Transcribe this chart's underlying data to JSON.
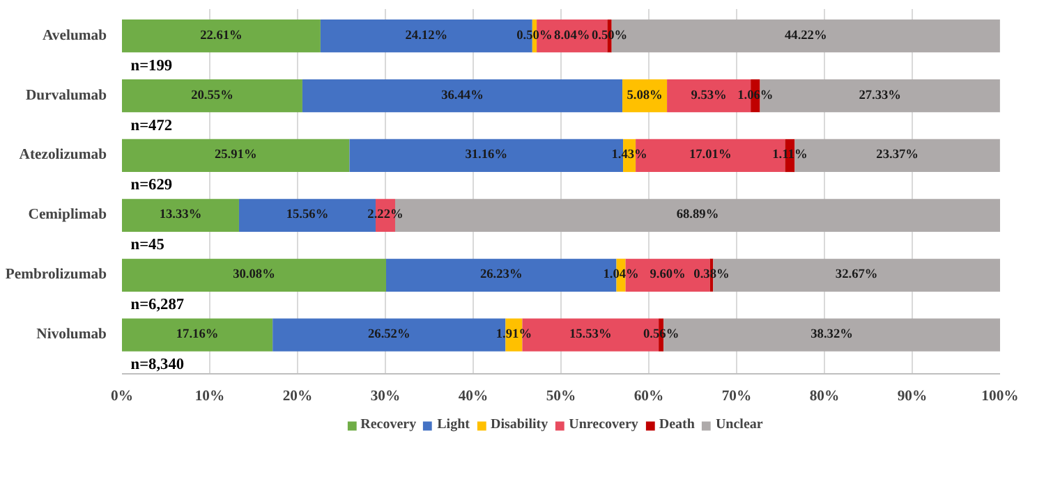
{
  "chart_data": {
    "type": "bar",
    "orientation": "horizontal",
    "stacked": true,
    "categories": [
      "Avelumab",
      "Durvalumab",
      "Atezolizumab",
      "Cemiplimab",
      "Pembrolizumab",
      "Nivolumab"
    ],
    "series": [
      {
        "name": "Recovery",
        "color": "#70ad47",
        "values": [
          22.61,
          20.55,
          25.91,
          13.33,
          30.08,
          17.16
        ],
        "value_labels": [
          "22.61%",
          "20.55%",
          "25.91%",
          "13.33%",
          "30.08%",
          "17.16%"
        ]
      },
      {
        "name": "Light",
        "color": "#4472c4",
        "values": [
          24.12,
          36.44,
          31.16,
          15.56,
          26.23,
          26.52
        ],
        "value_labels": [
          "24.12%",
          "36.44%",
          "31.16%",
          "15.56%",
          "26.23%",
          "26.52%"
        ]
      },
      {
        "name": "Disability",
        "color": "#ffc000",
        "values": [
          0.5,
          5.08,
          1.43,
          null,
          1.04,
          1.91
        ],
        "value_labels": [
          "0.50%",
          "5.08%",
          "1.43%",
          null,
          "1.04%",
          "1.91%"
        ]
      },
      {
        "name": "Unrecovery",
        "color": "#e84c5f",
        "values": [
          8.04,
          9.53,
          17.01,
          2.22,
          9.6,
          15.53
        ],
        "value_labels": [
          "8.04%",
          "9.53%",
          "17.01%",
          "2.22%",
          "9.60%",
          "15.53%"
        ]
      },
      {
        "name": "Death",
        "color": "#c00000",
        "values": [
          0.5,
          1.06,
          1.11,
          null,
          0.38,
          0.56
        ],
        "value_labels": [
          "0.50%",
          "1.06%",
          "1.11%",
          null,
          "0.38%",
          "0.56%"
        ]
      },
      {
        "name": "Unclear",
        "color": "#aeaaaa",
        "values": [
          44.22,
          27.33,
          23.37,
          68.89,
          32.67,
          38.32
        ],
        "value_labels": [
          "44.22%",
          "27.33%",
          "23.37%",
          "68.89%",
          "32.67%",
          "38.32%"
        ]
      }
    ],
    "annotations": [
      "n=199",
      "n=472",
      "n=629",
      "n=45",
      "n=6,287",
      "n=8,340"
    ],
    "xlim": [
      0,
      100
    ],
    "xticks": [
      {
        "value": 0,
        "label": "0%"
      },
      {
        "value": 10,
        "label": "10%"
      },
      {
        "value": 20,
        "label": "20%"
      },
      {
        "value": 30,
        "label": "30%"
      },
      {
        "value": 40,
        "label": "40%"
      },
      {
        "value": 50,
        "label": "50%"
      },
      {
        "value": 60,
        "label": "60%"
      },
      {
        "value": 70,
        "label": "70%"
      },
      {
        "value": 80,
        "label": "80%"
      },
      {
        "value": 90,
        "label": "90%"
      },
      {
        "value": 100,
        "label": "100%"
      }
    ],
    "grid": "x",
    "legend": "bottom"
  }
}
